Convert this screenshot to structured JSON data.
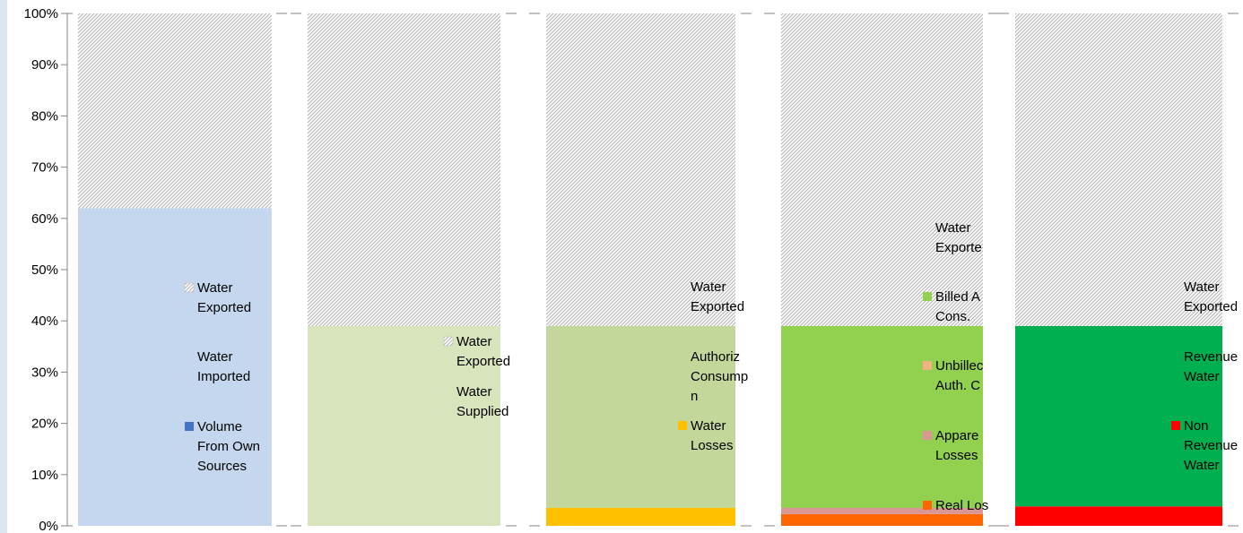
{
  "chart_data": {
    "type": "bar",
    "stacked": true,
    "ylim": [
      0,
      100
    ],
    "y_ticks": [
      "0%",
      "10%",
      "20%",
      "30%",
      "40%",
      "50%",
      "60%",
      "70%",
      "80%",
      "90%",
      "100%"
    ],
    "grid": false,
    "panels": [
      {
        "segments": [
          {
            "name": "Volume From Own Sources",
            "value": 0,
            "color": "#4472C4",
            "pattern": false
          },
          {
            "name": "Water Imported",
            "value": 62,
            "color": "#C5D7EE",
            "pattern": false
          },
          {
            "name": "Water Exported",
            "value": 38,
            "color": "#D9D9D9",
            "pattern": true
          }
        ],
        "legend": [
          {
            "lines": [
              "Water",
              "Exported"
            ],
            "marker": "hatch"
          },
          {
            "lines": [
              "Water",
              "Imported"
            ],
            "marker": "none"
          },
          {
            "lines": [
              "Volume",
              "From Own",
              "Sources"
            ],
            "marker": "#4472C4"
          }
        ]
      },
      {
        "segments": [
          {
            "name": "Water Supplied",
            "value": 39,
            "color": "#D8E4BC",
            "pattern": false
          },
          {
            "name": "Water Exported",
            "value": 61,
            "color": "#D9D9D9",
            "pattern": true
          }
        ],
        "legend": [
          {
            "lines": [
              "Water",
              "Exported"
            ],
            "marker": "hatch"
          },
          {
            "lines": [
              "Water",
              "Supplied"
            ],
            "marker": "none"
          }
        ]
      },
      {
        "segments": [
          {
            "name": "Water Losses",
            "value": 3.5,
            "color": "#FFC000",
            "pattern": false
          },
          {
            "name": "Authorized Consumption",
            "value": 35.5,
            "color": "#C4D79B",
            "pattern": false
          },
          {
            "name": "Water Exported",
            "value": 61,
            "color": "#D9D9D9",
            "pattern": true
          }
        ],
        "legend": [
          {
            "lines": [
              "Water",
              "Exported"
            ],
            "marker": "none"
          },
          {
            "lines": [
              "Authoriz",
              "Consump",
              "n"
            ],
            "marker": "none"
          },
          {
            "lines": [
              "Water",
              "Losses"
            ],
            "marker": "#FFC000"
          }
        ]
      },
      {
        "segments": [
          {
            "name": "Real Losses",
            "value": 2.3,
            "color": "#FF6600",
            "pattern": false
          },
          {
            "name": "Apparent Losses",
            "value": 1.2,
            "color": "#D99694",
            "pattern": false
          },
          {
            "name": "Unbilled Auth. Cons.",
            "value": 0,
            "color": "#F4B183",
            "pattern": false
          },
          {
            "name": "Billed Auth. Cons.",
            "value": 35.5,
            "color": "#92D050",
            "pattern": false
          },
          {
            "name": "Water Exported",
            "value": 61,
            "color": "#D9D9D9",
            "pattern": true
          }
        ],
        "legend": [
          {
            "lines": [
              "Water",
              "Exporte"
            ],
            "marker": "none"
          },
          {
            "lines": [
              "Billed A",
              "Cons."
            ],
            "marker": "#92D050"
          },
          {
            "lines": [
              "Unbillec",
              "Auth. C"
            ],
            "marker": "#F4B183"
          },
          {
            "lines": [
              "Appare",
              "Losses"
            ],
            "marker": "#D99694"
          },
          {
            "lines": [
              "Real Los"
            ],
            "marker": "#FF6600"
          }
        ]
      },
      {
        "segments": [
          {
            "name": "Non Revenue Water",
            "value": 3.8,
            "color": "#FF0000",
            "pattern": false
          },
          {
            "name": "Revenue Water",
            "value": 35.2,
            "color": "#00B050",
            "pattern": false
          },
          {
            "name": "Water Exported",
            "value": 61,
            "color": "#D9D9D9",
            "pattern": true
          }
        ],
        "legend": [
          {
            "lines": [
              "Water",
              "Exported"
            ],
            "marker": "none"
          },
          {
            "lines": [
              "Revenue",
              "Water"
            ],
            "marker": "none"
          },
          {
            "lines": [
              "Non",
              "Revenue",
              "Water"
            ],
            "marker": "#FF0000"
          }
        ]
      }
    ]
  }
}
